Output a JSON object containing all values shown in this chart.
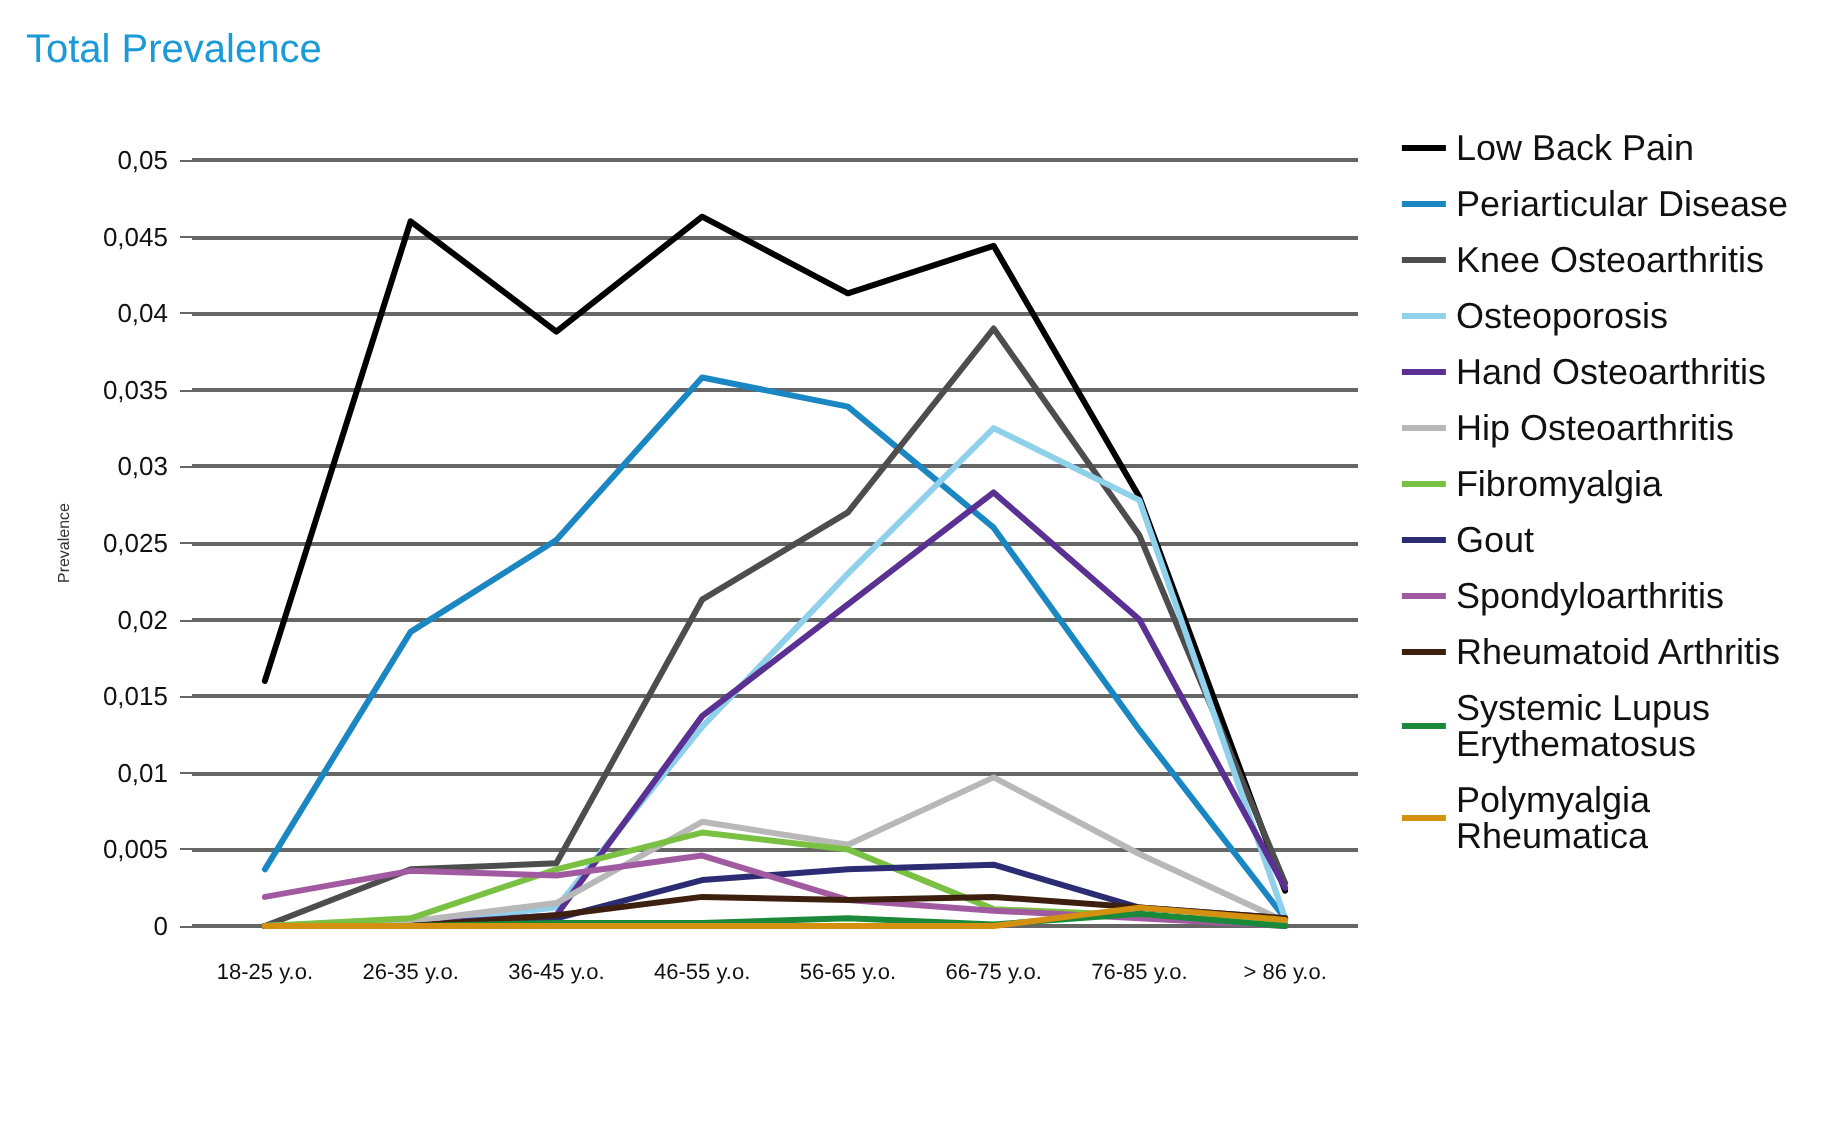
{
  "chart_data": {
    "type": "line",
    "title": "Total Prevalence",
    "ylabel": "Prevalence",
    "categories": [
      "18-25 y.o.",
      "26-35 y.o.",
      "36-45 y.o.",
      "46-55 y.o.",
      "56-65 y.o.",
      "66-75 y.o.",
      "76-85 y.o.",
      "> 86 y.o."
    ],
    "series": [
      {
        "name": "Low Back Pain",
        "color": "#000000",
        "values": [
          0.016,
          0.046,
          0.0388,
          0.0463,
          0.0413,
          0.0444,
          0.028,
          0.0023
        ]
      },
      {
        "name": "Periarticular Disease",
        "color": "#1a87c3",
        "values": [
          0.0037,
          0.0192,
          0.0252,
          0.0358,
          0.0339,
          0.026,
          0.0128,
          0.0005
        ]
      },
      {
        "name": "Knee Osteoarthritis",
        "color": "#4d4d4d",
        "values": [
          0,
          0.0037,
          0.0041,
          0.0213,
          0.027,
          0.039,
          0.0255,
          0.0028
        ]
      },
      {
        "name": "Osteoporosis",
        "color": "#8fd0ea",
        "values": [
          0,
          0.0002,
          0.0012,
          0.013,
          0.023,
          0.0325,
          0.0278,
          0.0005
        ]
      },
      {
        "name": "Hand Osteoarthritis",
        "color": "#5a3192",
        "values": [
          0,
          0.0001,
          0.0007,
          0.0137,
          0.021,
          0.0283,
          0.02,
          0.0025
        ]
      },
      {
        "name": "Hip Osteoarthritis",
        "color": "#b8b8b8",
        "values": [
          0,
          0.0003,
          0.0015,
          0.0068,
          0.0053,
          0.0097,
          0.0047,
          0.0003
        ]
      },
      {
        "name": "Fibromyalgia",
        "color": "#7ac143",
        "values": [
          0,
          0.0005,
          0.0037,
          0.0061,
          0.005,
          0.0011,
          0.0007,
          0.0002
        ]
      },
      {
        "name": "Gout",
        "color": "#2b2c73",
        "values": [
          0,
          0,
          0.0005,
          0.003,
          0.0037,
          0.004,
          0.0012,
          0.0005
        ]
      },
      {
        "name": "Spondyloarthritis",
        "color": "#a15aa0",
        "values": [
          0.0019,
          0.0036,
          0.0033,
          0.0046,
          0.0017,
          0.001,
          0.0005,
          0
        ]
      },
      {
        "name": "Rheumatoid Arthritis",
        "color": "#3d1f10",
        "values": [
          0,
          0,
          0.0007,
          0.0019,
          0.0017,
          0.0019,
          0.0012,
          0.0005
        ]
      },
      {
        "name": "Systemic Lupus Erythematosus",
        "color": "#1a8a3a",
        "values": [
          0,
          0,
          0.0002,
          0.0002,
          0.0005,
          0.0001,
          0.0008,
          0
        ]
      },
      {
        "name": "Polymyalgia Rheumatica",
        "color": "#d4900f",
        "values": [
          0,
          0,
          0,
          0,
          0,
          0,
          0.0012,
          0.0004
        ]
      }
    ],
    "ylim": [
      0,
      0.05
    ],
    "yticks": [
      {
        "value": 0,
        "label": "0"
      },
      {
        "value": 0.005,
        "label": "0,005"
      },
      {
        "value": 0.01,
        "label": "0,01"
      },
      {
        "value": 0.015,
        "label": "0,015"
      },
      {
        "value": 0.02,
        "label": "0,02"
      },
      {
        "value": 0.025,
        "label": "0,025"
      },
      {
        "value": 0.03,
        "label": "0,03"
      },
      {
        "value": 0.035,
        "label": "0,035"
      },
      {
        "value": 0.04,
        "label": "0,04"
      },
      {
        "value": 0.045,
        "label": "0,045"
      },
      {
        "value": 0.05,
        "label": "0,05"
      }
    ],
    "grid": "y",
    "legend": "right",
    "marker": "none",
    "line_style": "solid"
  }
}
